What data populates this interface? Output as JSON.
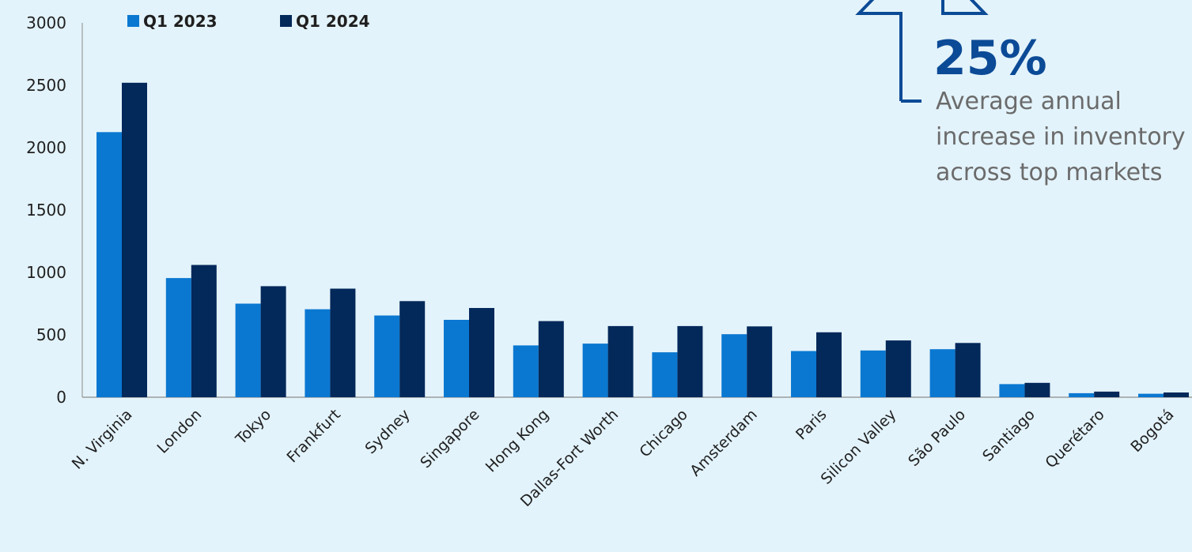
{
  "chart_data": {
    "type": "bar",
    "categories": [
      "N. Virginia",
      "London",
      "Tokyo",
      "Frankfurt",
      "Sydney",
      "Singapore",
      "Hong Kong",
      "Dallas-Fort Worth",
      "Chicago",
      "Amsterdam",
      "Paris",
      "Silicon Valley",
      "São Paulo",
      "Santiago",
      "Querétaro",
      "Bogotá"
    ],
    "series": [
      {
        "name": "Q1 2023",
        "color": "#0a78d1",
        "values": [
          2125,
          955,
          750,
          705,
          655,
          620,
          415,
          430,
          360,
          505,
          370,
          375,
          385,
          105,
          32,
          28
        ]
      },
      {
        "name": "Q1 2024",
        "color": "#03285a",
        "values": [
          2520,
          1060,
          890,
          870,
          770,
          715,
          610,
          570,
          570,
          568,
          520,
          455,
          435,
          115,
          45,
          38
        ]
      }
    ],
    "yticks": [
      "3000",
      "2500",
      "2000",
      "1500",
      "1000",
      "500",
      "0"
    ],
    "ylim": [
      0,
      3000
    ],
    "grid": false,
    "legend_position": "top-left"
  },
  "callout": {
    "value": "25%",
    "lines": [
      "Average annual",
      "increase in inventory",
      "across top markets"
    ],
    "accent": "#0b4a96"
  }
}
